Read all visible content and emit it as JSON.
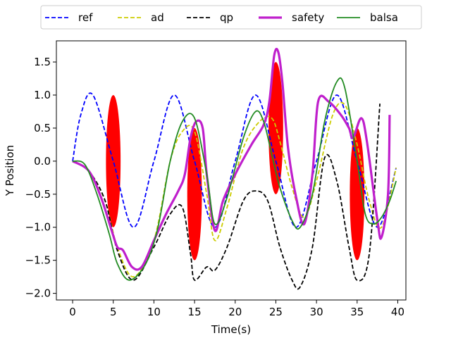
{
  "chart_data": {
    "type": "line",
    "title": "",
    "xlabel": "Time(s)",
    "ylabel": "Y Position",
    "xlim": [
      -2,
      41
    ],
    "ylim": [
      -2.1,
      1.82
    ],
    "xticks": [
      0,
      5,
      10,
      15,
      20,
      25,
      30,
      35,
      40
    ],
    "xtick_labels": [
      "0",
      "5",
      "10",
      "15",
      "20",
      "25",
      "30",
      "35",
      "40"
    ],
    "yticks": [
      1.5,
      1.0,
      0.5,
      0.0,
      -0.5,
      -1.0,
      -1.5,
      -2.0
    ],
    "ytick_labels": [
      "1.5",
      "1.0",
      "0.5",
      "0.0",
      "−0.5",
      "−1.0",
      "−1.5",
      "−2.0"
    ],
    "grid": false,
    "legend_position": "top, above plot",
    "legend": [
      "ref",
      "ad",
      "qp",
      "safety",
      "balsa"
    ],
    "series": [
      {
        "name": "ref",
        "color": "#0000ff",
        "style": "dashed",
        "x": [
          0,
          1,
          2.5,
          5,
          7.5,
          10,
          12.5,
          15,
          17.5,
          20,
          22.5,
          25,
          27.5,
          30,
          32.5,
          35,
          37.5,
          39.8
        ],
        "y": [
          0,
          0.7,
          1.0,
          0,
          -1.0,
          0,
          1.0,
          0,
          -1.0,
          0,
          1.0,
          0,
          -1.0,
          0,
          1.0,
          0,
          -1.0,
          -0.1
        ]
      },
      {
        "name": "ad",
        "color": "#cccc00",
        "style": "dashed",
        "x": [
          0,
          2,
          4,
          5.5,
          7.5,
          10,
          12,
          13.5,
          15,
          16.5,
          17.5,
          19,
          21,
          23,
          24.5,
          25.5,
          27,
          28.5,
          30,
          32,
          33.5,
          35,
          36.5,
          38,
          39.8
        ],
        "y": [
          0,
          -0.15,
          -0.6,
          -1.3,
          -1.75,
          -1.2,
          0.0,
          0.45,
          0.45,
          -0.5,
          -1.2,
          -0.7,
          0.2,
          0.6,
          0.65,
          0.3,
          -0.4,
          -0.85,
          -0.3,
          0.7,
          0.85,
          0.25,
          -0.6,
          -1.0,
          -0.1
        ]
      },
      {
        "name": "qp",
        "color": "#000000",
        "style": "dashed",
        "x": [
          0,
          2,
          4,
          5.5,
          7.5,
          10,
          12,
          13.5,
          14.5,
          15,
          16.5,
          17.5,
          19,
          21,
          22.5,
          24,
          25.5,
          27,
          28,
          29.5,
          31,
          32.5,
          34,
          35,
          36.5,
          37.8
        ],
        "y": [
          0,
          -0.15,
          -0.6,
          -1.35,
          -1.8,
          -1.3,
          -0.8,
          -0.7,
          -1.4,
          -1.8,
          -1.6,
          -1.65,
          -1.3,
          -0.6,
          -0.45,
          -0.6,
          -1.3,
          -1.8,
          -1.9,
          -1.3,
          0.05,
          -0.3,
          -1.3,
          -1.8,
          -1.4,
          0.87
        ]
      },
      {
        "name": "safety",
        "color": "#bf1fcc",
        "style": "solid",
        "x": [
          0,
          2,
          3.5,
          4.8,
          5.5,
          6.2,
          7.3,
          8.5,
          10,
          11.5,
          13,
          13.8,
          14.5,
          15.2,
          16,
          16.5,
          17.5,
          18.5,
          20,
          22,
          23.5,
          24.2,
          24.8,
          25.3,
          25.8,
          26.5,
          27.5,
          28.5,
          29.5,
          30.2,
          31.5,
          33,
          34,
          34.5,
          35.5,
          36.2,
          37.5,
          38,
          38.8,
          39
        ],
        "y": [
          0,
          -0.15,
          -0.55,
          -1.05,
          -1.3,
          -1.35,
          -1.6,
          -1.6,
          -1.2,
          -0.8,
          -0.45,
          -0.2,
          0.35,
          0.6,
          0.5,
          -0.2,
          -1.05,
          -0.6,
          -0.2,
          0.25,
          0.55,
          0.9,
          1.6,
          1.65,
          1.2,
          0.2,
          -0.55,
          -0.95,
          -0.2,
          0.9,
          0.9,
          0.7,
          0.5,
          0.35,
          0.65,
          0.3,
          -0.9,
          -1.15,
          -0.5,
          0.7
        ]
      },
      {
        "name": "balsa",
        "color": "#228b22",
        "style": "solid",
        "x": [
          0,
          1.5,
          3,
          4.5,
          5.5,
          7,
          9,
          10.5,
          12,
          13.5,
          15,
          16.5,
          17.5,
          19,
          21,
          22.5,
          23.5,
          24.5,
          25.5,
          27,
          28,
          29.5,
          31,
          32.5,
          33.5,
          35,
          36,
          37,
          38,
          39,
          39.8
        ],
        "y": [
          0,
          -0.05,
          -0.5,
          -1.1,
          -1.55,
          -1.8,
          -1.55,
          -1.0,
          0.0,
          0.6,
          0.65,
          -0.2,
          -0.95,
          -0.55,
          0.35,
          0.75,
          0.6,
          0.1,
          -0.4,
          -0.9,
          -1.0,
          -0.5,
          0.6,
          1.2,
          1.1,
          0.0,
          -0.8,
          -0.95,
          -0.85,
          -0.6,
          -0.3
        ]
      }
    ],
    "obstacles": {
      "color": "#ff0000",
      "items": [
        {
          "x": 5,
          "y": 0.0,
          "width": 1.8,
          "height": 2.0
        },
        {
          "x": 15,
          "y": -0.5,
          "width": 1.8,
          "height": 2.0
        },
        {
          "x": 25,
          "y": 0.5,
          "width": 1.8,
          "height": 2.0
        },
        {
          "x": 35,
          "y": -0.5,
          "width": 1.8,
          "height": 2.0
        }
      ]
    }
  }
}
